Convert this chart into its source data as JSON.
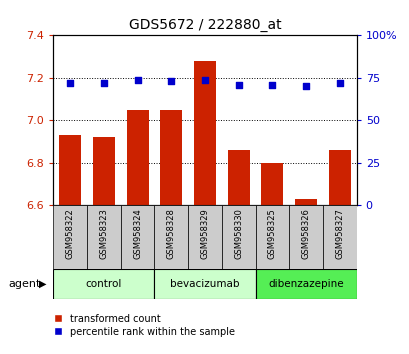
{
  "title": "GDS5672 / 222880_at",
  "samples": [
    "GSM958322",
    "GSM958323",
    "GSM958324",
    "GSM958328",
    "GSM958329",
    "GSM958330",
    "GSM958325",
    "GSM958326",
    "GSM958327"
  ],
  "bar_values": [
    6.93,
    6.92,
    7.05,
    7.05,
    7.28,
    6.86,
    6.8,
    6.63,
    6.86
  ],
  "percentile_values": [
    72,
    72,
    74,
    73,
    74,
    71,
    71,
    70,
    72
  ],
  "ylim": [
    6.6,
    7.4
  ],
  "y2lim": [
    0,
    100
  ],
  "yticks": [
    6.6,
    6.8,
    7.0,
    7.2,
    7.4
  ],
  "y2ticks": [
    0,
    25,
    50,
    75,
    100
  ],
  "y2ticklabels": [
    "0",
    "25",
    "50",
    "75",
    "100%"
  ],
  "bar_color": "#cc2200",
  "dot_color": "#0000cc",
  "groups": [
    {
      "label": "control",
      "indices": [
        0,
        1,
        2
      ],
      "color": "#ccffcc"
    },
    {
      "label": "bevacizumab",
      "indices": [
        3,
        4,
        5
      ],
      "color": "#ccffcc"
    },
    {
      "label": "dibenzazepine",
      "indices": [
        6,
        7,
        8
      ],
      "color": "#55ee55"
    }
  ],
  "legend_bar_label": "transformed count",
  "legend_dot_label": "percentile rank within the sample",
  "title_fontsize": 10,
  "tick_fontsize": 8,
  "background_color": "#ffffff",
  "grid_color": "#000000",
  "xtick_bg_color": "#cccccc",
  "xtick_fontsize": 6
}
